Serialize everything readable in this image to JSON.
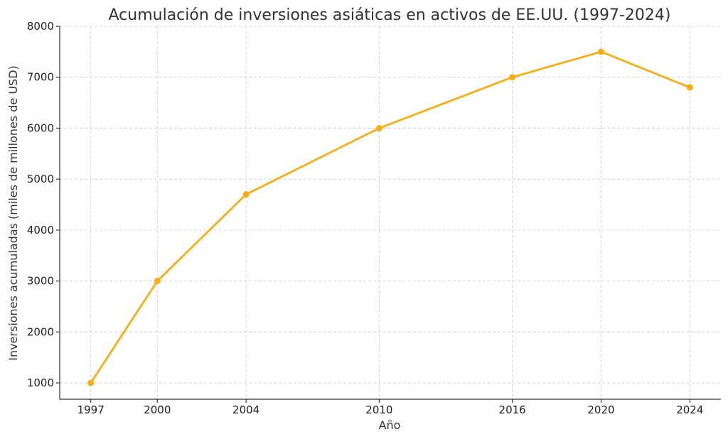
{
  "chart_data": {
    "type": "line",
    "title": "Acumulación de inversiones asiáticas en activos de EE.UU. (1997-2024)",
    "xlabel": "Año",
    "ylabel": "Inversiones acumuladas (miles de millones de USD)",
    "x": [
      1997,
      2000,
      2004,
      2010,
      2016,
      2020,
      2024
    ],
    "x_tick_labels": [
      "1997",
      "2000",
      "2004",
      "2010",
      "2016",
      "2020",
      "2024"
    ],
    "series": [
      {
        "values": [
          1000,
          3000,
          4700,
          6000,
          7000,
          7500,
          6800
        ]
      }
    ],
    "xlim": [
      1995.6,
      2025.4
    ],
    "ylim": [
      680,
      8000
    ],
    "y_ticks": [
      1000,
      2000,
      3000,
      4000,
      5000,
      6000,
      7000,
      8000
    ],
    "y_tick_labels": [
      "1000",
      "2000",
      "3000",
      "4000",
      "5000",
      "6000",
      "7000",
      "8000"
    ],
    "grid": true,
    "color": "#f6ae12"
  }
}
